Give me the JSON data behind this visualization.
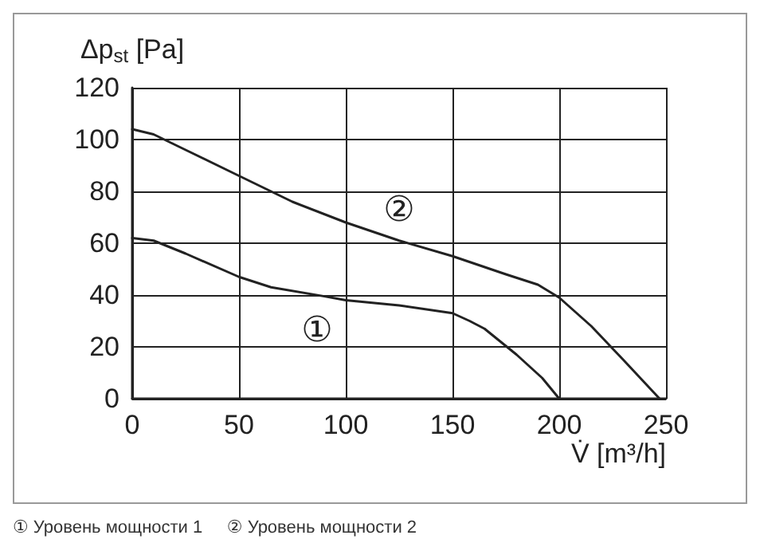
{
  "chart_data": {
    "type": "line",
    "xlabel": "V̇ [m³/h]",
    "ylabel": "Δp$_{st}$ [Pa]",
    "xlim": [
      0,
      250
    ],
    "xticks": [
      0,
      50,
      100,
      150,
      200,
      250
    ],
    "ylim": [
      0,
      120
    ],
    "yticks": [
      0,
      20,
      40,
      60,
      80,
      100,
      120
    ],
    "grid": true,
    "marker": "none",
    "line_style": "solid",
    "series": [
      {
        "name": "①",
        "color": "#222222",
        "x": [
          0,
          10,
          25,
          50,
          65,
          90,
          100,
          125,
          150,
          158,
          165,
          180,
          192,
          200
        ],
        "values": [
          62,
          61,
          56,
          47,
          43,
          39.5,
          38,
          36,
          33,
          30,
          27,
          17,
          8,
          0
        ]
      },
      {
        "name": "②",
        "color": "#222222",
        "x": [
          0,
          10,
          25,
          50,
          75,
          100,
          125,
          150,
          175,
          190,
          200,
          215,
          230,
          247
        ],
        "values": [
          104,
          102,
          96,
          86,
          76,
          68,
          61,
          55,
          48,
          44,
          39,
          28,
          15,
          0
        ]
      }
    ],
    "annotations": [
      "① Уровень мощности 1     ② Уровень мощности 2"
    ]
  }
}
